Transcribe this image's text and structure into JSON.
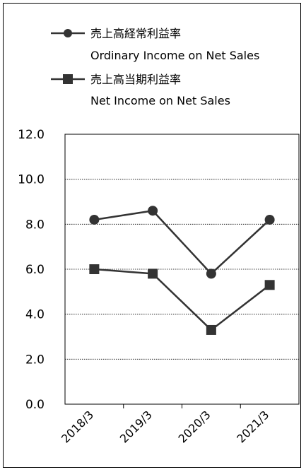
{
  "chart_data": {
    "type": "line",
    "categories": [
      "2018/3",
      "2019/3",
      "2020/3",
      "2021/3"
    ],
    "series": [
      {
        "name_ja": "売上高経常利益率",
        "name_en": "Ordinary Income on Net Sales",
        "marker": "circle",
        "values": [
          8.2,
          8.6,
          5.8,
          8.2
        ]
      },
      {
        "name_ja": "売上高当期利益率",
        "name_en": "Net Income on Net Sales",
        "marker": "square",
        "values": [
          6.0,
          5.8,
          3.3,
          5.3
        ]
      }
    ],
    "yticks": [
      "0.0",
      "2.0",
      "4.0",
      "6.0",
      "8.0",
      "10.0",
      "12.0"
    ],
    "ylim": [
      0,
      12
    ],
    "grid": "horizontal dotted",
    "legend_position": "top-left",
    "colors": {
      "line": "#333333",
      "marker": "#333333",
      "axis": "#000000",
      "grid": "#000000"
    }
  }
}
